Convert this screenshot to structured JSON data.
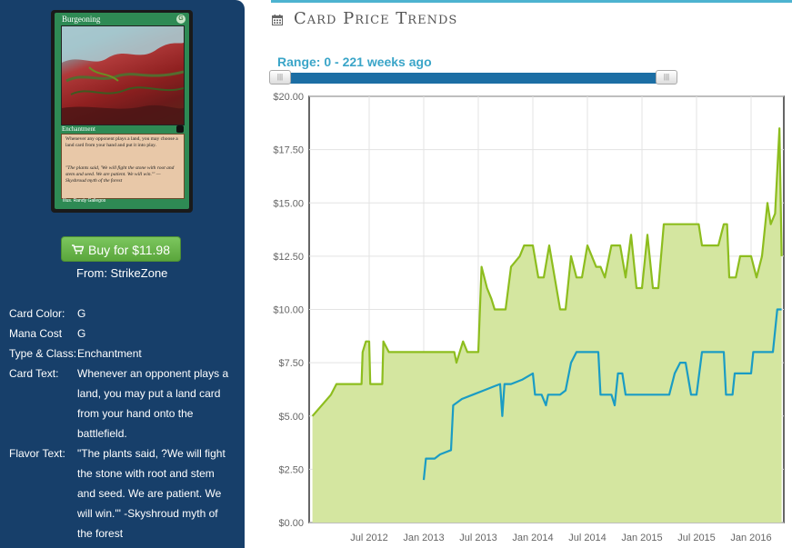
{
  "card": {
    "name": "Burgeoning",
    "mana_symbol": "G",
    "type_line": "Enchantment",
    "rules_text": "Whenever any opponent plays a land, you may choose a land card from your hand and put it into play.",
    "flavor_text": "\"The plants said, 'We will fight the stone with root and stem and seed. We are patient. We will win.'\" —Skyshroud myth of the forest",
    "illustrator": "Illus. Randy Gallegos"
  },
  "buy": {
    "label": "Buy for $11.98",
    "from": "From: StrikeZone"
  },
  "properties": [
    {
      "label": "Card Color:",
      "value": "G"
    },
    {
      "label": "Mana Cost",
      "value": "G"
    },
    {
      "label": "Type & Class:",
      "value": "Enchantment"
    },
    {
      "label": "Card Text:",
      "value": "Whenever an opponent plays a land, you may put a land card from your hand onto the battlefield."
    },
    {
      "label": "Flavor Text:",
      "value": "\"The plants said, ?We will fight the stone with root and stem and seed. We are patient. We will win.'\" -Skyshroud myth of the forest"
    }
  ],
  "trends": {
    "title": "Card Price Trends",
    "range_label": "Range: 0 - 221 weeks ago",
    "slider": {
      "min_weeks_ago": 0,
      "max_weeks_ago": 221
    }
  },
  "colors": {
    "panel": "#173f6a",
    "accent": "#4db3d0",
    "buy": "#67b34a",
    "series_high": "#8dbd1e",
    "series_low": "#1a9cc4",
    "area": "#d4e6a0"
  },
  "chart_data": {
    "type": "line",
    "xlim": [
      "2011-12",
      "2016-06"
    ],
    "ylim": [
      0,
      20
    ],
    "y_ticks": [
      "$0.00",
      "$2.50",
      "$5.00",
      "$7.50",
      "$10.00",
      "$12.50",
      "$15.00",
      "$17.50",
      "$20.00"
    ],
    "x_ticks": [
      {
        "label": "Jul 2012",
        "t": 2012.5
      },
      {
        "label": "Jan 2013",
        "t": 2013.0
      },
      {
        "label": "Jul 2013",
        "t": 2013.5
      },
      {
        "label": "Jan 2014",
        "t": 2014.0
      },
      {
        "label": "Jul 2014",
        "t": 2014.5
      },
      {
        "label": "Jan 2015",
        "t": 2015.0
      },
      {
        "label": "Jul 2015",
        "t": 2015.5
      },
      {
        "label": "Jan 2016",
        "t": 2016.0
      }
    ],
    "grid": true,
    "series": [
      {
        "style": "line-area",
        "points": [
          [
            2011.98,
            5.0
          ],
          [
            2012.15,
            6.0
          ],
          [
            2012.2,
            6.5
          ],
          [
            2012.28,
            6.5
          ],
          [
            2012.32,
            6.5
          ],
          [
            2012.43,
            6.5
          ],
          [
            2012.44,
            8.0
          ],
          [
            2012.47,
            8.5
          ],
          [
            2012.5,
            8.5
          ],
          [
            2012.51,
            6.5
          ],
          [
            2012.62,
            6.5
          ],
          [
            2012.63,
            8.5
          ],
          [
            2012.68,
            8.0
          ],
          [
            2012.75,
            8.0
          ],
          [
            2012.9,
            8.0
          ],
          [
            2013.0,
            8.0
          ],
          [
            2013.1,
            8.0
          ],
          [
            2013.2,
            8.0
          ],
          [
            2013.28,
            8.0
          ],
          [
            2013.3,
            7.5
          ],
          [
            2013.36,
            8.5
          ],
          [
            2013.4,
            8.0
          ],
          [
            2013.5,
            8.0
          ],
          [
            2013.53,
            12.0
          ],
          [
            2013.58,
            11.0
          ],
          [
            2013.62,
            10.5
          ],
          [
            2013.65,
            10.0
          ],
          [
            2013.7,
            10.0
          ],
          [
            2013.75,
            10.0
          ],
          [
            2013.8,
            12.0
          ],
          [
            2013.88,
            12.5
          ],
          [
            2013.92,
            13.0
          ],
          [
            2014.0,
            13.0
          ],
          [
            2014.05,
            11.5
          ],
          [
            2014.1,
            11.5
          ],
          [
            2014.15,
            13.0
          ],
          [
            2014.2,
            11.5
          ],
          [
            2014.25,
            10.0
          ],
          [
            2014.3,
            10.0
          ],
          [
            2014.35,
            12.5
          ],
          [
            2014.4,
            11.5
          ],
          [
            2014.45,
            11.5
          ],
          [
            2014.5,
            13.0
          ],
          [
            2014.58,
            12.0
          ],
          [
            2014.62,
            12.0
          ],
          [
            2014.66,
            11.5
          ],
          [
            2014.72,
            13.0
          ],
          [
            2014.8,
            13.0
          ],
          [
            2014.85,
            11.5
          ],
          [
            2014.9,
            13.5
          ],
          [
            2014.95,
            11.0
          ],
          [
            2015.0,
            11.0
          ],
          [
            2015.05,
            13.5
          ],
          [
            2015.1,
            11.0
          ],
          [
            2015.15,
            11.0
          ],
          [
            2015.2,
            14.0
          ],
          [
            2015.3,
            14.0
          ],
          [
            2015.4,
            14.0
          ],
          [
            2015.45,
            14.0
          ],
          [
            2015.52,
            14.0
          ],
          [
            2015.55,
            13.0
          ],
          [
            2015.62,
            13.0
          ],
          [
            2015.7,
            13.0
          ],
          [
            2015.75,
            14.0
          ],
          [
            2015.78,
            14.0
          ],
          [
            2015.8,
            11.5
          ],
          [
            2015.86,
            11.5
          ],
          [
            2015.9,
            12.5
          ],
          [
            2016.0,
            12.5
          ],
          [
            2016.05,
            11.5
          ],
          [
            2016.1,
            12.5
          ],
          [
            2016.15,
            15.0
          ],
          [
            2016.18,
            14.0
          ],
          [
            2016.22,
            14.5
          ],
          [
            2016.24,
            16.5
          ],
          [
            2016.26,
            18.5
          ],
          [
            2016.28,
            12.5
          ]
        ]
      },
      {
        "style": "line",
        "points": [
          [
            2013.0,
            2.0
          ],
          [
            2013.02,
            3.0
          ],
          [
            2013.1,
            3.0
          ],
          [
            2013.15,
            3.2
          ],
          [
            2013.2,
            3.3
          ],
          [
            2013.25,
            3.4
          ],
          [
            2013.27,
            5.5
          ],
          [
            2013.35,
            5.8
          ],
          [
            2013.45,
            6.0
          ],
          [
            2013.55,
            6.2
          ],
          [
            2013.65,
            6.4
          ],
          [
            2013.7,
            6.5
          ],
          [
            2013.72,
            5.0
          ],
          [
            2013.74,
            6.5
          ],
          [
            2013.8,
            6.5
          ],
          [
            2013.9,
            6.7
          ],
          [
            2014.0,
            7.0
          ],
          [
            2014.02,
            6.0
          ],
          [
            2014.08,
            6.0
          ],
          [
            2014.12,
            5.5
          ],
          [
            2014.14,
            6.0
          ],
          [
            2014.25,
            6.0
          ],
          [
            2014.3,
            6.2
          ],
          [
            2014.35,
            7.5
          ],
          [
            2014.4,
            8.0
          ],
          [
            2014.6,
            8.0
          ],
          [
            2014.62,
            6.0
          ],
          [
            2014.72,
            6.0
          ],
          [
            2014.75,
            5.5
          ],
          [
            2014.78,
            7.0
          ],
          [
            2014.82,
            7.0
          ],
          [
            2014.85,
            6.0
          ],
          [
            2015.0,
            6.0
          ],
          [
            2015.2,
            6.0
          ],
          [
            2015.25,
            6.0
          ],
          [
            2015.3,
            7.0
          ],
          [
            2015.35,
            7.5
          ],
          [
            2015.4,
            7.5
          ],
          [
            2015.45,
            6.0
          ],
          [
            2015.5,
            6.0
          ],
          [
            2015.55,
            8.0
          ],
          [
            2015.75,
            8.0
          ],
          [
            2015.77,
            6.0
          ],
          [
            2015.83,
            6.0
          ],
          [
            2015.85,
            7.0
          ],
          [
            2016.0,
            7.0
          ],
          [
            2016.02,
            8.0
          ],
          [
            2016.2,
            8.0
          ],
          [
            2016.24,
            10.0
          ],
          [
            2016.28,
            10.0
          ]
        ]
      }
    ]
  }
}
